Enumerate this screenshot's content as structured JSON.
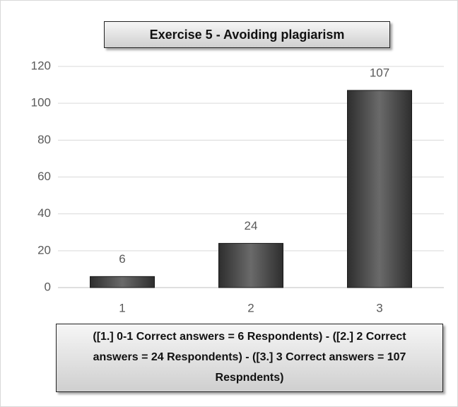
{
  "chart_data": {
    "type": "bar",
    "title": "Exercise 5 - Avoiding plagiarism",
    "categories": [
      "1",
      "2",
      "3"
    ],
    "values": [
      6,
      24,
      107
    ],
    "color": "#555555",
    "ylim": [
      0,
      120
    ],
    "yticks": [
      0,
      20,
      40,
      60,
      80,
      100,
      120
    ],
    "grid": true,
    "annotation": "([1.] 0-1 Correct answers = 6 Respondents) - ([2.] 2 Correct answers = 24 Respondents) - ([3.] 3 Correct answers = 107 Respndents)"
  }
}
